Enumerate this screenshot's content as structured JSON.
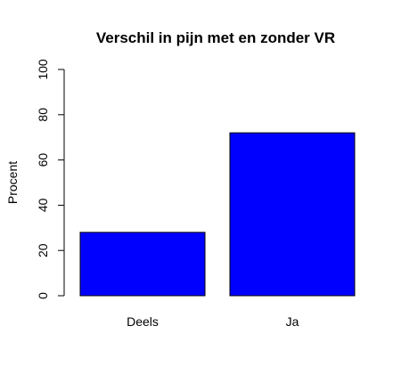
{
  "chart_data": {
    "type": "bar",
    "title": "Verschil in pijn met en zonder VR",
    "xlabel": "",
    "ylabel": "Procent",
    "categories": [
      "Deels",
      "Ja"
    ],
    "values": [
      28,
      72
    ],
    "ylim": [
      0,
      100
    ],
    "yticks": [
      0,
      20,
      40,
      60,
      80,
      100
    ],
    "bar_color": "#0000FF",
    "grid": false,
    "legend": "none"
  }
}
